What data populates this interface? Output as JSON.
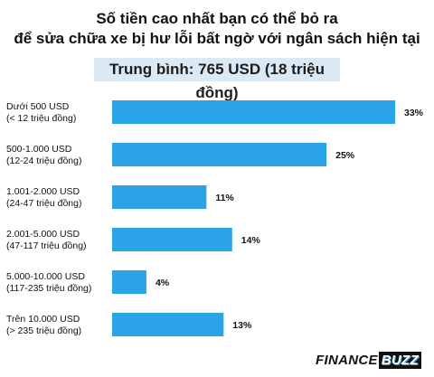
{
  "title_line1": "Số tiền cao nhất bạn có thể bỏ ra",
  "title_line2": "để sửa chữa xe bị hư lỗi bất ngờ với ngân sách hiện tại",
  "average": "Trung bình: 765 USD (18 triệu đồng)",
  "brand": {
    "part1": "FINANCE",
    "part2": "BUZZ"
  },
  "bar_color": "#2aa4e6",
  "chart_data": {
    "type": "bar",
    "orientation": "horizontal",
    "categories": [
      [
        "Dưới 500 USD",
        "(< 12 triệu đồng)"
      ],
      [
        "500-1.000 USD",
        "(12-24 triệu đồng)"
      ],
      [
        "1.001-2.000 USD",
        "(24-47 triệu đồng)"
      ],
      [
        "2.001-5.000 USD",
        "(47-117 triệu đồng)"
      ],
      [
        "5.000-10.000 USD",
        "(117-235 triệu đồng)"
      ],
      [
        "Trên 10.000 USD",
        "(> 235 triệu đồng)"
      ]
    ],
    "values": [
      33,
      25,
      11,
      14,
      4,
      13
    ],
    "value_labels": [
      "33%",
      "25%",
      "11%",
      "14%",
      "4%",
      "13%"
    ],
    "xlim": [
      0,
      33
    ],
    "grid": false
  }
}
